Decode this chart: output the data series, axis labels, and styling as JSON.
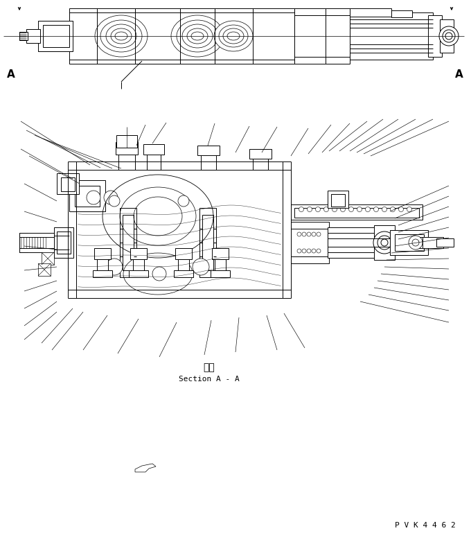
{
  "background_color": "#ffffff",
  "line_color": "#000000",
  "lw": 0.7,
  "text_danmen": "断面",
  "text_section": "Section A - A",
  "text_A": "A",
  "text_pvk": "P V K 4 4 6 2",
  "fig_width": 6.8,
  "fig_height": 7.69,
  "dpi": 100
}
